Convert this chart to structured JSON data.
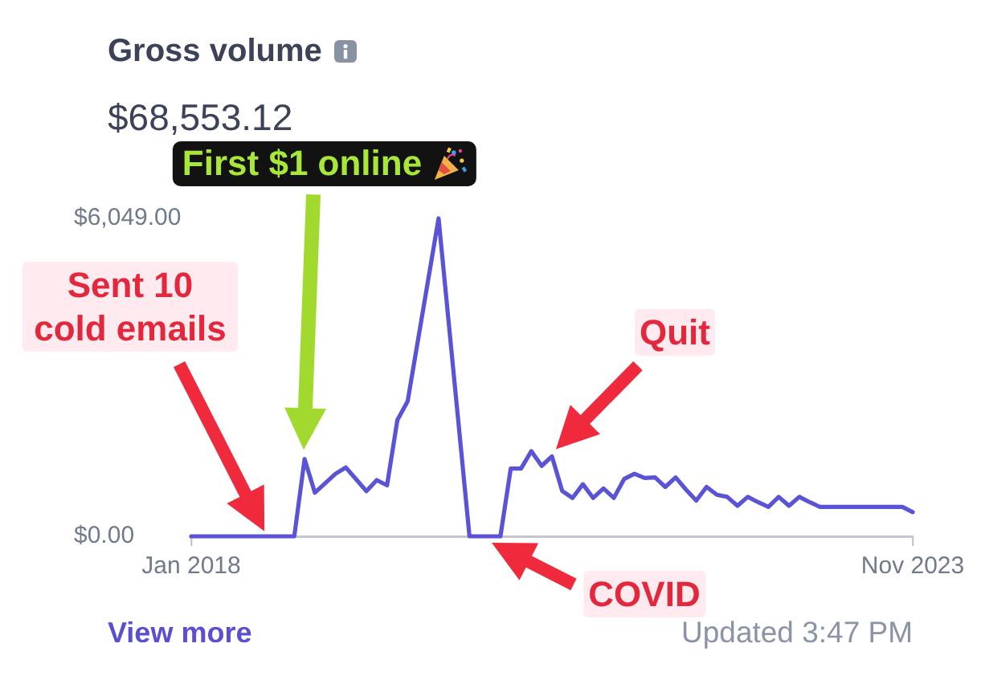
{
  "chart_data": {
    "type": "line",
    "title": "Gross volume",
    "subtitle": "$68,553.12",
    "x": [
      "2018-01",
      "2018-11",
      "2018-12",
      "2019-01",
      "2019-03",
      "2019-04",
      "2019-06",
      "2019-07",
      "2019-08",
      "2019-09",
      "2019-10",
      "2020-01",
      "2020-04",
      "2020-07",
      "2020-08",
      "2020-09",
      "2020-10",
      "2020-11",
      "2020-12",
      "2021-01",
      "2021-02",
      "2021-03",
      "2021-04",
      "2021-05",
      "2021-06",
      "2021-07",
      "2021-08",
      "2021-09",
      "2021-10",
      "2021-11",
      "2021-12",
      "2022-01",
      "2022-02",
      "2022-03",
      "2022-04",
      "2022-05",
      "2022-06",
      "2022-07",
      "2022-08",
      "2022-09",
      "2022-10",
      "2022-11",
      "2022-12",
      "2023-01",
      "2023-02",
      "2023-10",
      "2023-11"
    ],
    "values": [
      0,
      0,
      1470,
      830,
      1190,
      1310,
      860,
      1070,
      970,
      2210,
      2570,
      6049,
      0,
      0,
      1290,
      1290,
      1620,
      1340,
      1520,
      860,
      730,
      990,
      730,
      910,
      730,
      1090,
      1190,
      1110,
      1120,
      940,
      1120,
      890,
      680,
      940,
      790,
      750,
      580,
      750,
      650,
      560,
      750,
      580,
      750,
      650,
      560,
      560,
      460
    ],
    "color": "#5b53d6",
    "xlim": [
      "2018-01",
      "2023-11"
    ],
    "xticks": [
      {
        "value": "2018-01",
        "label": "Jan 2018"
      },
      {
        "value": "2023-11",
        "label": "Nov 2023"
      }
    ],
    "ylim": [
      0,
      6049
    ],
    "yticks": [
      {
        "value": 0,
        "label": "$0.00"
      },
      {
        "value": 6049,
        "label": "$6,049.00"
      }
    ],
    "annotations": [
      "Sent 10 cold emails",
      "First $1 online",
      "Quit",
      {
        "text": "COVID",
        "x": "2020-06",
        "y": 0
      },
      "View more",
      "Updated 3:47 PM"
    ]
  }
}
